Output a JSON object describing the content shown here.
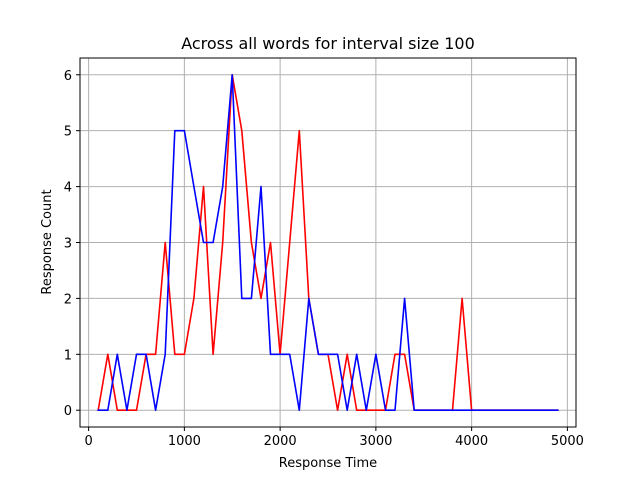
{
  "chart_data": {
    "type": "line",
    "title": "Across all words for interval size 100",
    "xlabel": "Response Time",
    "ylabel": "Response Count",
    "xlim": [
      -90,
      5090
    ],
    "ylim": [
      -0.3,
      6.3
    ],
    "xticks": [
      0,
      1000,
      2000,
      3000,
      4000,
      5000
    ],
    "xtick_labels": [
      "0",
      "1000",
      "2000",
      "3000",
      "4000",
      "5000"
    ],
    "yticks": [
      0,
      1,
      2,
      3,
      4,
      5,
      6
    ],
    "ytick_labels": [
      "0",
      "1",
      "2",
      "3",
      "4",
      "5",
      "6"
    ],
    "grid": true,
    "x": [
      100,
      200,
      300,
      400,
      500,
      600,
      700,
      800,
      900,
      1000,
      1100,
      1200,
      1300,
      1400,
      1500,
      1600,
      1700,
      1800,
      1900,
      2000,
      2100,
      2200,
      2300,
      2400,
      2500,
      2600,
      2700,
      2800,
      2900,
      3000,
      3100,
      3200,
      3300,
      3400,
      3500,
      3600,
      3700,
      3800,
      3900,
      4000,
      4100,
      4200,
      4300,
      4400,
      4500,
      4600,
      4700,
      4800,
      4900
    ],
    "series": [
      {
        "color": "#ff0000",
        "values": [
          0,
          1,
          0,
          0,
          0,
          1,
          1,
          3,
          1,
          1,
          2,
          4,
          1,
          3,
          6,
          5,
          3,
          2,
          3,
          1,
          3,
          5,
          2,
          1,
          1,
          0,
          1,
          0,
          0,
          0,
          0,
          1,
          1,
          0,
          0,
          0,
          0,
          0,
          2,
          0,
          0,
          0,
          0,
          0,
          0,
          0,
          0,
          0,
          0
        ]
      },
      {
        "color": "#0000ff",
        "values": [
          0,
          0,
          1,
          0,
          1,
          1,
          0,
          1,
          5,
          5,
          4,
          3,
          3,
          4,
          6,
          2,
          2,
          4,
          1,
          1,
          1,
          0,
          2,
          1,
          1,
          1,
          0,
          1,
          0,
          1,
          0,
          0,
          2,
          0,
          0,
          0,
          0,
          0,
          0,
          0,
          0,
          0,
          0,
          0,
          0,
          0,
          0,
          0,
          0
        ]
      }
    ]
  }
}
